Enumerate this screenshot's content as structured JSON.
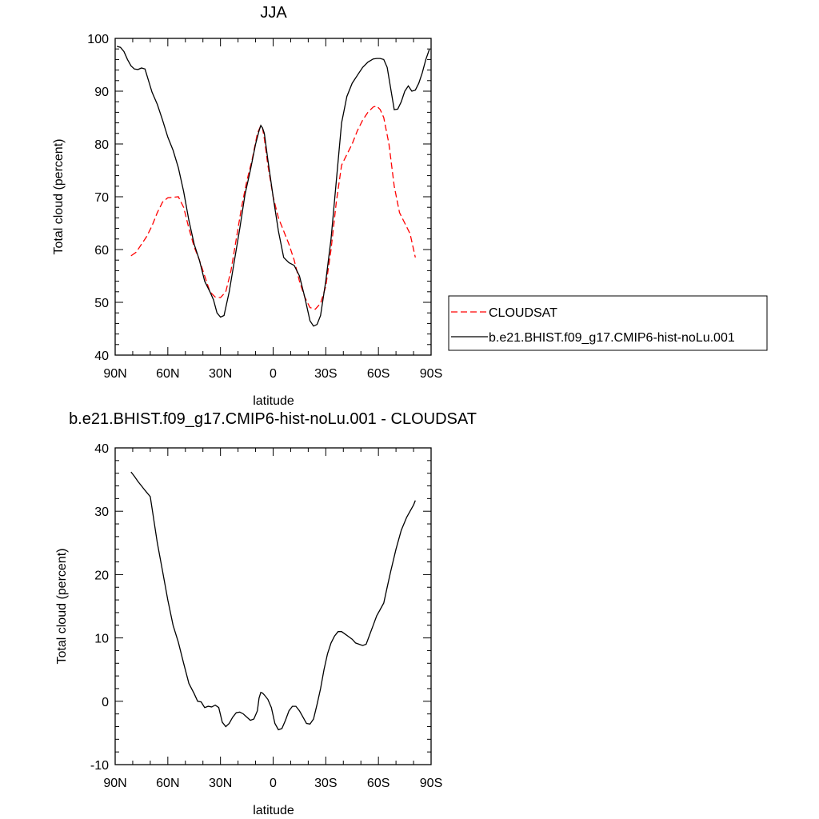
{
  "colors": {
    "cloudsat": "#ff0000",
    "model": "#000000"
  },
  "chart_data": [
    {
      "type": "line",
      "title": "JJA",
      "xlabel": "latitude",
      "ylabel": "Total cloud (percent)",
      "xlim": [
        90,
        -90
      ],
      "ylim": [
        40,
        100
      ],
      "xticks": [
        90,
        60,
        30,
        0,
        -30,
        -60,
        -90
      ],
      "xtick_labels": [
        "90N",
        "60N",
        "30N",
        "0",
        "30S",
        "60S",
        "90S"
      ],
      "yticks": [
        40,
        50,
        60,
        70,
        80,
        90,
        100
      ],
      "ytick_labels": [
        "40",
        "50",
        "60",
        "70",
        "80",
        "90",
        "100"
      ],
      "legend_placement": "right",
      "series": [
        {
          "name": "CLOUDSAT",
          "color": "#ff0000",
          "dash": "dashed",
          "x": [
            81,
            78,
            75,
            72,
            69,
            66,
            63,
            60,
            57,
            54,
            51,
            48,
            45,
            42,
            39,
            36,
            33,
            30,
            27,
            24,
            21,
            18,
            15,
            12,
            9,
            7,
            6,
            5,
            3,
            0,
            -3,
            -6,
            -9,
            -12,
            -15,
            -18,
            -21,
            -24,
            -27,
            -30,
            -33,
            -36,
            -39,
            -42,
            -45,
            -48,
            -51,
            -54,
            -57,
            -59,
            -61,
            -63,
            -66,
            -69,
            -72,
            -75,
            -78,
            -81
          ],
          "y": [
            58.8,
            59.5,
            61,
            62.5,
            64.5,
            67,
            69,
            69.8,
            69.9,
            70,
            68,
            64,
            60.5,
            58,
            55,
            52,
            51,
            50.9,
            52,
            56,
            62,
            68,
            73,
            77,
            82,
            83.5,
            83,
            81,
            76,
            70,
            66,
            63.5,
            61,
            58,
            54,
            51,
            49,
            48.7,
            49.8,
            53,
            60,
            69,
            76,
            78,
            80,
            82.5,
            84.5,
            86,
            87,
            87.2,
            86.5,
            85,
            80,
            72,
            67,
            65,
            63,
            58.5
          ]
        },
        {
          "name": "b.e21.BHIST.f09_g17.CMIP6-hist-noLu.001",
          "color": "#000000",
          "dash": "solid",
          "x": [
            89,
            87,
            85,
            83,
            81,
            79,
            77,
            75,
            73,
            71,
            69,
            66,
            63,
            60,
            57,
            54,
            51,
            48,
            45,
            42,
            39,
            36,
            34,
            32,
            30,
            28,
            25,
            22,
            19,
            16,
            13,
            10,
            8,
            7,
            6,
            5,
            3,
            0,
            -3,
            -6,
            -9,
            -12,
            -15,
            -18,
            -21,
            -23,
            -25,
            -27,
            -30,
            -33,
            -36,
            -39,
            -42,
            -45,
            -48,
            -51,
            -54,
            -57,
            -59,
            -61,
            -63,
            -65,
            -67,
            -69,
            -71,
            -73,
            -75,
            -77,
            -79,
            -81,
            -83,
            -85,
            -87,
            -89
          ],
          "y": [
            98.5,
            98.3,
            97.5,
            96,
            94.8,
            94.2,
            94.1,
            94.4,
            94.2,
            92,
            89.8,
            87.5,
            84.5,
            81.3,
            78.8,
            75.5,
            71,
            65.5,
            61,
            58,
            54,
            52,
            50.5,
            48,
            47.2,
            47.5,
            52,
            58,
            64,
            70.5,
            75,
            80,
            82.5,
            83.5,
            83,
            82,
            77,
            70,
            63.5,
            58.5,
            57.5,
            57,
            55,
            51,
            46.5,
            45.5,
            45.8,
            47.5,
            54,
            62,
            73,
            84,
            89,
            91.5,
            93,
            94.5,
            95.5,
            96.1,
            96.2,
            96.2,
            96,
            94.5,
            90.5,
            86.5,
            86.6,
            88,
            90,
            91,
            90,
            90.2,
            91.5,
            93.5,
            96,
            97.9
          ]
        }
      ]
    },
    {
      "type": "line",
      "title": "b.e21.BHIST.f09_g17.CMIP6-hist-noLu.001 - CLOUDSAT",
      "xlabel": "latitude",
      "ylabel": "Total cloud (percent)",
      "xlim": [
        90,
        -90
      ],
      "ylim": [
        -10,
        40
      ],
      "xticks": [
        90,
        60,
        30,
        0,
        -30,
        -60,
        -90
      ],
      "xtick_labels": [
        "90N",
        "60N",
        "30N",
        "0",
        "30S",
        "60S",
        "90S"
      ],
      "yticks": [
        -10,
        0,
        10,
        20,
        30,
        40
      ],
      "ytick_labels": [
        "-10",
        "0",
        "10",
        "20",
        "30",
        "40"
      ],
      "series": [
        {
          "color": "#000000",
          "dash": "solid",
          "x": [
            81,
            79,
            77,
            75,
            73,
            70,
            66,
            63,
            60,
            57,
            54,
            51,
            48,
            45,
            43,
            41,
            39,
            37,
            35,
            33,
            31,
            29,
            27,
            25,
            23,
            21,
            19,
            17,
            15,
            13,
            11,
            9,
            8,
            7,
            6,
            5,
            3,
            1,
            -1,
            -3,
            -5,
            -7,
            -9,
            -11,
            -13,
            -15,
            -17,
            -19,
            -21,
            -23,
            -25,
            -27,
            -29,
            -31,
            -33,
            -35,
            -37,
            -39,
            -41,
            -43,
            -45,
            -47,
            -49,
            -51,
            -53,
            -55,
            -57,
            -59,
            -61,
            -63,
            -65,
            -67,
            -70,
            -73,
            -76,
            -78,
            -80,
            -81
          ],
          "y": [
            36.2,
            35.5,
            34.7,
            34,
            33.3,
            32.3,
            25,
            20.5,
            16,
            12,
            9.3,
            6,
            2.8,
            1.2,
            0,
            -0.1,
            -1,
            -0.8,
            -0.9,
            -0.6,
            -1,
            -3.3,
            -4,
            -3.5,
            -2.5,
            -1.8,
            -1.7,
            -2,
            -2.5,
            -3,
            -2.8,
            -1.5,
            0.5,
            1.4,
            1.3,
            1,
            0.3,
            -1,
            -3.5,
            -4.5,
            -4.3,
            -3,
            -1.5,
            -0.8,
            -0.8,
            -1.5,
            -2.5,
            -3.5,
            -3.6,
            -2.8,
            -0.5,
            2,
            5,
            7.5,
            9.2,
            10.3,
            11,
            11,
            10.6,
            10.2,
            9.8,
            9.2,
            9,
            8.8,
            9,
            10.5,
            12,
            13.5,
            14.5,
            15.5,
            18,
            20.5,
            24,
            27,
            29,
            30,
            31,
            31.7
          ]
        }
      ]
    }
  ]
}
